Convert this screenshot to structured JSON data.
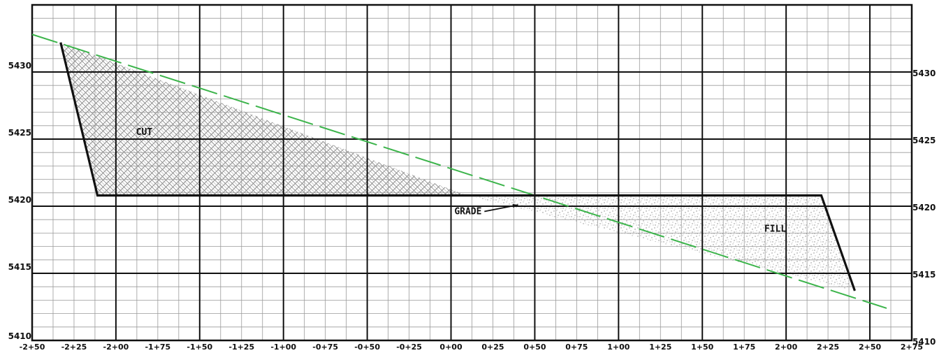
{
  "chart_data": {
    "type": "line",
    "title": "",
    "xlabel": "",
    "ylabel": "",
    "xlim": [
      -250,
      275
    ],
    "ylim": [
      5410,
      5435
    ],
    "x_tick_values": [
      -250,
      -225,
      -200,
      -175,
      -150,
      -125,
      -100,
      -75,
      -50,
      -25,
      0,
      25,
      50,
      75,
      100,
      125,
      150,
      175,
      200,
      225,
      250,
      275
    ],
    "x_tick_labels": [
      "-2+50",
      "-2+25",
      "-2+00",
      "-1+75",
      "-1+50",
      "-1+25",
      "-1+00",
      "-0+75",
      "-0+50",
      "-0+25",
      "0+00",
      "0+25",
      "0+50",
      "0+75",
      "1+00",
      "1+25",
      "1+50",
      "1+75",
      "2+00",
      "2+25",
      "2+50",
      "2+75"
    ],
    "y_tick_values": [
      5410,
      5415,
      5420,
      5425,
      5430
    ],
    "y_tick_labels": [
      "5410",
      "5415",
      "5420",
      "5425",
      "5430"
    ],
    "minor_grid": {
      "x_step": 12.5,
      "y_step": 1
    },
    "major_grid": {
      "x_step": 50,
      "y_step": 5
    },
    "series": [
      {
        "role": "existing-ground",
        "style": "dashed",
        "color": "#3cb44b",
        "x": [
          -250,
          260
        ],
        "y": [
          5432.8,
          5412.4
        ]
      },
      {
        "role": "proposed-section",
        "style": "solid",
        "color": "#111111",
        "x": [
          -233,
          -211,
          221,
          241
        ],
        "y": [
          5432.2,
          5420.8,
          5420.8,
          5413.7
        ]
      }
    ],
    "regions": [
      {
        "name": "cut",
        "pattern": "crosshatch",
        "x": [
          -233,
          -211,
          9.5
        ],
        "y": [
          5432.2,
          5420.8,
          5420.8
        ]
      },
      {
        "name": "fill",
        "pattern": "stipple",
        "x": [
          9.5,
          221,
          241,
          241
        ],
        "y": [
          5420.8,
          5420.8,
          5413.7,
          5413.7
        ]
      }
    ],
    "annotations": [
      {
        "text": "CUT",
        "x": -188,
        "y": 5425.3
      },
      {
        "text": "FILL",
        "x": 187,
        "y": 5418.1
      },
      {
        "text": "GRADE",
        "x": 2,
        "y": 5419.4,
        "arrow_to": [
          40,
          5420.1
        ]
      }
    ]
  }
}
